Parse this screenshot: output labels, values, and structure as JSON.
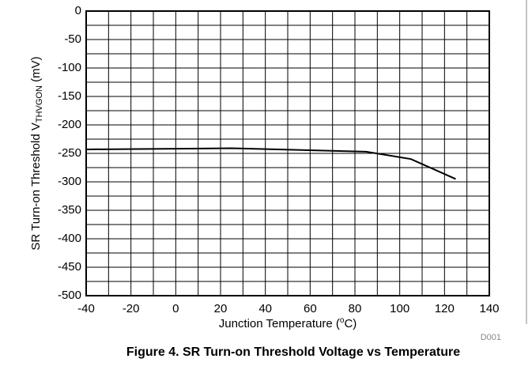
{
  "chart_data": {
    "type": "line",
    "title": "Figure 4. SR Turn-on Threshold Voltage vs Temperature",
    "ylabel": [
      "SR Turn-on Threshold V",
      "THVGON",
      " (mV)"
    ],
    "xlabel": [
      "Junction Temperature (",
      "o",
      "C)"
    ],
    "note": "D001",
    "x": [
      -40,
      25,
      85,
      105,
      125
    ],
    "series": [
      {
        "name": "VTHVGON",
        "color": "#000000",
        "values": [
          -243,
          -241,
          -247,
          -260,
          -295
        ]
      }
    ],
    "xlim": [
      -40,
      140
    ],
    "xticks": [
      -40,
      -20,
      0,
      20,
      40,
      60,
      80,
      100,
      120,
      140
    ],
    "xminorticks": [
      -30,
      -10,
      10,
      30,
      50,
      70,
      90,
      110,
      130
    ],
    "ylim": [
      -500,
      0
    ],
    "yticks": [
      0,
      -50,
      -100,
      -150,
      -200,
      -250,
      -300,
      -350,
      -400,
      -450,
      -500
    ],
    "yminorticks": [
      -25,
      -75,
      -125,
      -175,
      -225,
      -275,
      -325,
      -375,
      -425,
      -475
    ],
    "grid": true,
    "legend": false
  }
}
